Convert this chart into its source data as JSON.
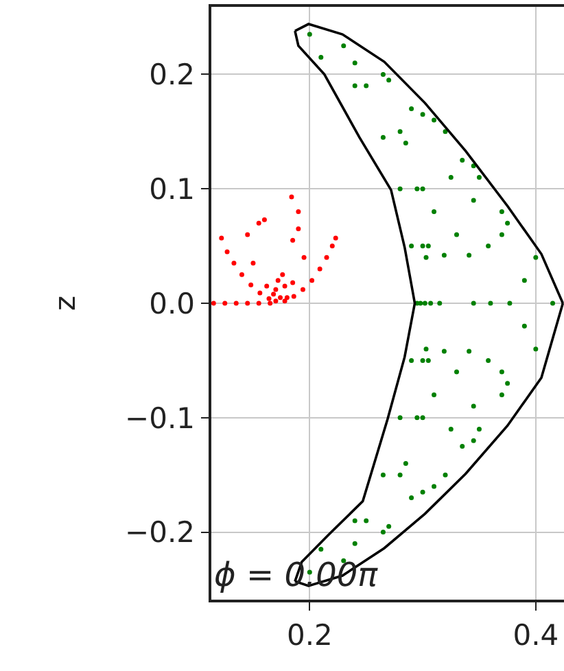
{
  "chart_data": {
    "type": "scatter",
    "ylabel": "z",
    "annotations": [
      "ϕ = 0.00π"
    ],
    "xlim": [
      0.113,
      0.425
    ],
    "xticks": [
      0.2,
      0.4
    ],
    "ylim": [
      -0.259,
      0.259
    ],
    "yticks": [
      {
        "value": -0.2,
        "label": "−0.2"
      },
      {
        "value": -0.1,
        "label": "−0.1"
      },
      {
        "value": 0,
        "label": "0.0"
      },
      0.1,
      0.2
    ],
    "grid": true,
    "marker": "circle",
    "series": [
      {
        "color": "#008000",
        "x": [
          0.33,
          0.341,
          0.345,
          0.341,
          0.33,
          0.319,
          0.315,
          0.319,
          0.325,
          0.345,
          0.358,
          0.36,
          0.358,
          0.345,
          0.325,
          0.31,
          0.303,
          0.302,
          0.303,
          0.31,
          0.29,
          0.32,
          0.35,
          0.37,
          0.377,
          0.37,
          0.35,
          0.32,
          0.29,
          0.285,
          0.3,
          0.305,
          0.307,
          0.305,
          0.3,
          0.285,
          0.24,
          0.27,
          0.31,
          0.345,
          0.375,
          0.39,
          0.39,
          0.375,
          0.345,
          0.31,
          0.27,
          0.24,
          0.25,
          0.28,
          0.295,
          0.3,
          0.298,
          0.3,
          0.295,
          0.28,
          0.25,
          0.2,
          0.23,
          0.265,
          0.3,
          0.335,
          0.37,
          0.4,
          0.415,
          0.4,
          0.37,
          0.335,
          0.3,
          0.265,
          0.23,
          0.2,
          0.21,
          0.24,
          0.265,
          0.28,
          0.29,
          0.295,
          0.29,
          0.28,
          0.265,
          0.24,
          0.21
        ],
        "values": [
          0.06,
          0.042,
          0,
          -0.042,
          -0.06,
          -0.042,
          0,
          0.042,
          0.11,
          0.09,
          0.05,
          0,
          -0.05,
          -0.09,
          -0.11,
          -0.08,
          -0.04,
          0,
          0.04,
          0.08,
          0.17,
          0.15,
          0.11,
          0.06,
          0,
          -0.06,
          -0.11,
          -0.15,
          -0.17,
          -0.14,
          -0.1,
          -0.05,
          0,
          0.05,
          0.1,
          0.14,
          0.21,
          0.195,
          0.16,
          0.12,
          0.07,
          0.02,
          -0.02,
          -0.07,
          -0.12,
          -0.16,
          -0.195,
          -0.21,
          -0.19,
          -0.15,
          -0.1,
          -0.05,
          0,
          0.05,
          0.1,
          0.15,
          0.19,
          0.235,
          0.225,
          0.2,
          0.165,
          0.125,
          0.08,
          0.04,
          0,
          -0.04,
          -0.08,
          -0.125,
          -0.165,
          -0.2,
          -0.225,
          -0.235,
          -0.215,
          -0.19,
          -0.15,
          -0.1,
          -0.05,
          0,
          0.05,
          0.1,
          0.145,
          0.19,
          0.215
        ]
      },
      {
        "color": "#ff0000",
        "x": [
          0.122,
          0.127,
          0.133,
          0.14,
          0.148,
          0.156,
          0.164,
          0.17,
          0.178,
          0.186,
          0.194,
          0.202,
          0.209,
          0.215,
          0.22,
          0.223,
          0.172,
          0.176,
          0.17,
          0.178,
          0.168,
          0.18,
          0.174,
          0.162,
          0.185,
          0.184,
          0.19,
          0.155,
          0.16,
          0.145,
          0.185,
          0.195,
          0.15,
          0.19,
          0.115,
          0.125,
          0.135,
          0.145,
          0.155,
          0.165
        ],
        "values": [
          0.057,
          0.045,
          0.035,
          0.025,
          0.016,
          0.009,
          0.004,
          0.002,
          0.002,
          0.006,
          0.012,
          0.02,
          0.03,
          0.04,
          0.05,
          0.057,
          0.02,
          0.025,
          0.012,
          0.015,
          0.008,
          0.005,
          0.005,
          0.015,
          0.018,
          0.093,
          0.08,
          0.07,
          0.073,
          0.06,
          0.055,
          0.04,
          0.035,
          0.065,
          0,
          0,
          0,
          0,
          0,
          0
        ]
      },
      {
        "type": "line",
        "marker": "none",
        "color": "#000000",
        "x": [
          0.187,
          0.199,
          0.229,
          0.266,
          0.302,
          0.338,
          0.375,
          0.405,
          0.424
        ],
        "values": [
          0.238,
          0.244,
          0.235,
          0.211,
          0.175,
          0.133,
          0.085,
          0.043,
          0
        ]
      },
      {
        "type": "line",
        "marker": "none",
        "color": "#000000",
        "x": [
          0.187,
          0.199,
          0.229,
          0.266,
          0.302,
          0.338,
          0.375,
          0.405,
          0.424
        ],
        "values": [
          -0.243,
          -0.247,
          -0.238,
          -0.214,
          -0.184,
          -0.149,
          -0.107,
          -0.065,
          0
        ]
      },
      {
        "type": "line",
        "marker": "none",
        "color": "#000000",
        "x": [
          0.187,
          0.193,
          0.217,
          0.247,
          0.269,
          0.284,
          0.293,
          0.284,
          0.272,
          0.244,
          0.213,
          0.19,
          0.187
        ],
        "values": [
          -0.243,
          -0.226,
          -0.202,
          -0.173,
          -0.101,
          -0.047,
          0,
          0.049,
          0.099,
          0.145,
          0.2,
          0.225,
          0.238
        ]
      }
    ]
  }
}
